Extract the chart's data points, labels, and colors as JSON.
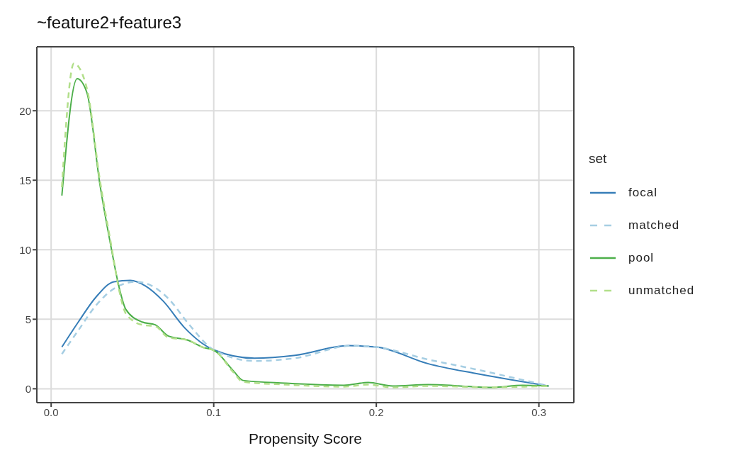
{
  "chart_data": {
    "type": "line",
    "title": "~feature2+feature3",
    "xlabel": "Propensity Score",
    "legend_title": "set",
    "legend": "right",
    "grid": true,
    "xlim": [
      -0.0088,
      0.3215
    ],
    "xticks": [
      {
        "value": 0,
        "label": "0.0"
      },
      0.1,
      0.2,
      0.3
    ],
    "ylim": [
      -1,
      24.6
    ],
    "yticks": [
      0,
      5,
      10,
      15,
      20
    ],
    "series": [
      {
        "name": "focal",
        "color": "#377eb8",
        "line_style": "solid",
        "x": [
          0.0066,
          0.0167,
          0.0276,
          0.0386,
          0.0487,
          0.058,
          0.069,
          0.082,
          0.1,
          0.125,
          0.15,
          0.183,
          0.2,
          0.232,
          0.261,
          0.306
        ],
        "values": [
          3.0,
          4.8,
          6.6,
          7.7,
          7.8,
          7.4,
          6.3,
          4.4,
          2.8,
          2.2,
          2.4,
          3.1,
          3.0,
          1.8,
          1.1,
          0.2
        ]
      },
      {
        "name": "matched",
        "color": "#a6cee3",
        "line_style": "dashed",
        "x": [
          0.0066,
          0.0167,
          0.0276,
          0.0386,
          0.052,
          0.062,
          0.072,
          0.085,
          0.1,
          0.125,
          0.15,
          0.185,
          0.2,
          0.232,
          0.261,
          0.306
        ],
        "values": [
          2.5,
          4.2,
          6.0,
          7.2,
          7.7,
          7.4,
          6.5,
          4.6,
          2.8,
          2.0,
          2.2,
          3.1,
          3.0,
          2.1,
          1.4,
          0.2
        ]
      },
      {
        "name": "pool",
        "color": "#4daf4a",
        "line_style": "solid",
        "x": [
          0.0066,
          0.016,
          0.022,
          0.03,
          0.037,
          0.042,
          0.046,
          0.056,
          0.064,
          0.072,
          0.084,
          0.093,
          0.101,
          0.112,
          0.118,
          0.144,
          0.18,
          0.195,
          0.21,
          0.232,
          0.271,
          0.29,
          0.306
        ],
        "values": [
          13.9,
          22.3,
          21.3,
          14.7,
          10.1,
          7.2,
          5.7,
          4.8,
          4.6,
          3.8,
          3.5,
          3.0,
          2.7,
          1.3,
          0.6,
          0.4,
          0.25,
          0.45,
          0.2,
          0.3,
          0.1,
          0.25,
          0.2
        ]
      },
      {
        "name": "unmatched",
        "color": "#b2df8a",
        "line_style": "dashed",
        "x": [
          0.0066,
          0.014,
          0.022,
          0.03,
          0.037,
          0.042,
          0.046,
          0.056,
          0.064,
          0.072,
          0.084,
          0.093,
          0.101,
          0.112,
          0.118,
          0.144,
          0.18,
          0.195,
          0.21,
          0.232,
          0.271,
          0.29,
          0.306
        ],
        "values": [
          14.5,
          23.4,
          21.6,
          15.0,
          10.3,
          7.0,
          5.4,
          4.6,
          4.5,
          3.7,
          3.5,
          3.0,
          2.7,
          1.2,
          0.5,
          0.3,
          0.15,
          0.3,
          0.1,
          0.2,
          0.1,
          0.15,
          0.2
        ]
      }
    ]
  }
}
